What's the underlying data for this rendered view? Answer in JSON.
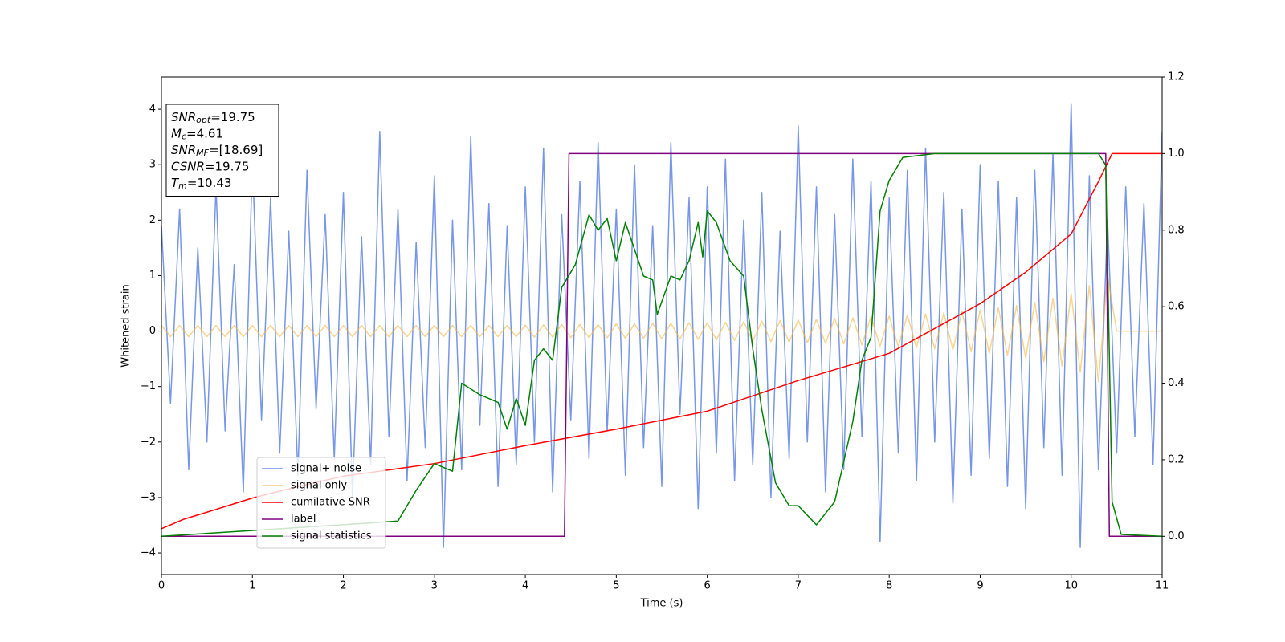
{
  "chart_data": {
    "type": "line",
    "xlabel": "Time (s)",
    "ylabel": "Whitened strain",
    "xlim": [
      0,
      11
    ],
    "ylim": [
      -4.39,
      4.58
    ],
    "y2lim": [
      -0.1,
      1.2
    ],
    "xticks": [
      0,
      1,
      2,
      3,
      4,
      5,
      6,
      7,
      8,
      9,
      10,
      11
    ],
    "yticks": [
      {
        "value": -4,
        "label": "−4"
      },
      {
        "value": -3,
        "label": "−3"
      },
      {
        "value": -2,
        "label": "−2"
      },
      {
        "value": -1,
        "label": "−1"
      },
      0,
      1,
      2,
      3,
      4
    ],
    "y2ticks": [
      {
        "value": 0,
        "label": "0.0"
      },
      {
        "value": 0.2,
        "label": "0.2"
      },
      {
        "value": 0.4,
        "label": "0.4"
      },
      {
        "value": 0.6,
        "label": "0.6"
      },
      {
        "value": 0.8,
        "label": "0.8"
      },
      {
        "value": 1,
        "label": "1.0"
      },
      {
        "value": 1.2,
        "label": "1.2"
      }
    ],
    "grid": false,
    "legend": "lower left",
    "annotation": [
      {
        "base": "SNR",
        "sub": "opt",
        "rest": "=19.75"
      },
      {
        "base": "M",
        "sub": "c",
        "rest": "=4.61"
      },
      {
        "base": "SNR",
        "sub": "MF",
        "rest": "=[18.69]"
      },
      {
        "base": "CSNR",
        "rest": "=19.75"
      },
      {
        "base": "T",
        "sub": "m",
        "rest": "=10.43"
      }
    ],
    "x": [
      0,
      0.1,
      0.2,
      0.3,
      0.4,
      0.5,
      0.6,
      0.7,
      0.8,
      0.9,
      1,
      1.1,
      1.2,
      1.3,
      1.4,
      1.5,
      1.6,
      1.7,
      1.8,
      1.9,
      2,
      2.1,
      2.2,
      2.3,
      2.4,
      2.5,
      2.6,
      2.7,
      2.8,
      2.9,
      3,
      3.1,
      3.2,
      3.3,
      3.4,
      3.5,
      3.6,
      3.7,
      3.8,
      3.9,
      4,
      4.1,
      4.2,
      4.3,
      4.4,
      4.5,
      4.6,
      4.7,
      4.8,
      4.9,
      5,
      5.1,
      5.2,
      5.3,
      5.4,
      5.5,
      5.6,
      5.7,
      5.8,
      5.9,
      6,
      6.1,
      6.2,
      6.3,
      6.4,
      6.5,
      6.6,
      6.7,
      6.8,
      6.9,
      7,
      7.1,
      7.2,
      7.3,
      7.4,
      7.5,
      7.6,
      7.7,
      7.8,
      7.9,
      8,
      8.1,
      8.2,
      8.3,
      8.4,
      8.5,
      8.6,
      8.7,
      8.8,
      8.9,
      9,
      9.1,
      9.2,
      9.3,
      9.4,
      9.5,
      9.6,
      9.7,
      9.8,
      9.9,
      10,
      10.1,
      10.2,
      10.3,
      10.4,
      10.5,
      10.6,
      10.7,
      10.8,
      10.9,
      11
    ],
    "series": [
      {
        "name": "signal+ noise",
        "color": "#7896e8",
        "values": [
          1.9,
          -1.3,
          2.2,
          -2.5,
          1.5,
          -2.0,
          2.6,
          -1.8,
          1.2,
          -2.9,
          3.1,
          -1.6,
          2.4,
          -2.2,
          1.8,
          -2.6,
          2.9,
          -1.4,
          2.1,
          -2.3,
          2.5,
          -3.0,
          1.7,
          -2.4,
          3.6,
          -1.9,
          2.2,
          -2.7,
          1.6,
          -2.1,
          2.8,
          -3.9,
          2.0,
          -2.5,
          3.5,
          -1.7,
          2.3,
          -2.8,
          1.9,
          -2.4,
          2.6,
          -2.0,
          3.3,
          -2.9,
          2.1,
          -1.6,
          2.7,
          -2.3,
          3.4,
          -1.8,
          2.2,
          -2.6,
          3.0,
          -2.1,
          1.9,
          -2.8,
          3.4,
          -1.5,
          2.4,
          -3.2,
          2.6,
          -2.2,
          3.1,
          -2.7,
          2.0,
          -2.4,
          2.5,
          -3.0,
          1.8,
          -2.3,
          3.7,
          -2.0,
          2.6,
          -2.9,
          2.1,
          -2.5,
          3.1,
          -1.9,
          2.7,
          -3.8,
          2.4,
          -2.2,
          2.9,
          -2.7,
          3.3,
          -2.0,
          2.5,
          -3.1,
          2.2,
          -2.6,
          3.0,
          -2.3,
          2.7,
          -2.8,
          2.4,
          -3.2,
          2.9,
          -2.1,
          3.2,
          -2.6,
          4.1,
          -3.9,
          2.8,
          -2.5,
          2.0,
          -2.2,
          2.6,
          -1.9,
          2.3,
          -2.4,
          3.6
        ]
      },
      {
        "name": "signal only",
        "color": "#f5b83d",
        "values": [
          0.1,
          -0.1,
          0.1,
          -0.1,
          0.1,
          -0.1,
          0.1,
          -0.1,
          0.1,
          -0.1,
          0.1,
          -0.1,
          0.1,
          -0.1,
          0.1,
          -0.1,
          0.1,
          -0.1,
          0.1,
          -0.1,
          0.1,
          -0.1,
          0.1,
          -0.1,
          0.1,
          -0.1,
          0.1,
          -0.1,
          0.1,
          -0.1,
          0.1,
          -0.1,
          0.1,
          -0.1,
          0.1,
          -0.1,
          0.1,
          -0.1,
          0.1,
          -0.1,
          0.11,
          -0.11,
          0.11,
          -0.11,
          0.12,
          -0.12,
          0.12,
          -0.12,
          0.12,
          -0.12,
          0.13,
          -0.13,
          0.13,
          -0.13,
          0.14,
          -0.14,
          0.14,
          -0.14,
          0.15,
          -0.15,
          0.15,
          -0.16,
          0.16,
          -0.17,
          0.17,
          -0.18,
          0.18,
          -0.19,
          0.19,
          -0.2,
          0.2,
          -0.21,
          0.21,
          -0.22,
          0.23,
          -0.23,
          0.24,
          -0.25,
          0.26,
          -0.27,
          0.27,
          -0.28,
          0.29,
          -0.3,
          0.31,
          -0.32,
          0.33,
          -0.34,
          0.35,
          -0.37,
          0.38,
          -0.4,
          0.42,
          -0.44,
          0.46,
          -0.49,
          0.52,
          -0.55,
          0.59,
          -0.63,
          0.68,
          -0.74,
          0.82,
          -0.92,
          1.0,
          0,
          0,
          0,
          0,
          0,
          0
        ]
      },
      {
        "name": "cumilative SNR",
        "color": "#ff0000",
        "axis": "y2",
        "x": [
          0,
          0.25,
          0.5,
          1,
          1.5,
          2,
          3,
          4,
          5,
          6,
          7,
          8,
          9,
          9.5,
          10,
          10.3,
          10.45,
          11
        ],
        "values": [
          0.02,
          0.045,
          0.063,
          0.1,
          0.13,
          0.157,
          0.19,
          0.237,
          0.28,
          0.327,
          0.407,
          0.478,
          0.608,
          0.69,
          0.79,
          0.927,
          1.0,
          1.0
        ]
      },
      {
        "name": "label",
        "color": "#800080",
        "axis": "y2",
        "x": [
          0,
          4.43,
          4.48,
          10.38,
          10.42,
          11
        ],
        "values": [
          0,
          0,
          1,
          1,
          0,
          0
        ]
      },
      {
        "name": "signal statistics",
        "color": "#008000",
        "axis": "y2",
        "x": [
          0,
          2.3,
          2.6,
          2.8,
          3.0,
          3.2,
          3.3,
          3.5,
          3.7,
          3.8,
          3.9,
          4.0,
          4.1,
          4.2,
          4.3,
          4.4,
          4.55,
          4.7,
          4.8,
          4.9,
          5.0,
          5.1,
          5.3,
          5.4,
          5.45,
          5.6,
          5.7,
          5.8,
          5.9,
          5.95,
          6.0,
          6.1,
          6.25,
          6.4,
          6.5,
          6.6,
          6.75,
          6.9,
          7.0,
          7.2,
          7.4,
          7.6,
          7.7,
          7.8,
          7.9,
          8.0,
          8.15,
          8.5,
          10.3,
          10.38,
          10.45,
          10.55,
          11
        ],
        "values": [
          0,
          0.035,
          0.04,
          0.12,
          0.19,
          0.17,
          0.4,
          0.37,
          0.35,
          0.28,
          0.36,
          0.29,
          0.46,
          0.49,
          0.46,
          0.65,
          0.71,
          0.84,
          0.8,
          0.83,
          0.72,
          0.82,
          0.68,
          0.67,
          0.58,
          0.68,
          0.67,
          0.72,
          0.82,
          0.73,
          0.85,
          0.82,
          0.72,
          0.68,
          0.49,
          0.33,
          0.14,
          0.08,
          0.08,
          0.03,
          0.09,
          0.3,
          0.46,
          0.52,
          0.85,
          0.93,
          0.99,
          1.0,
          1.0,
          0.97,
          0.09,
          0.005,
          0
        ]
      }
    ]
  }
}
